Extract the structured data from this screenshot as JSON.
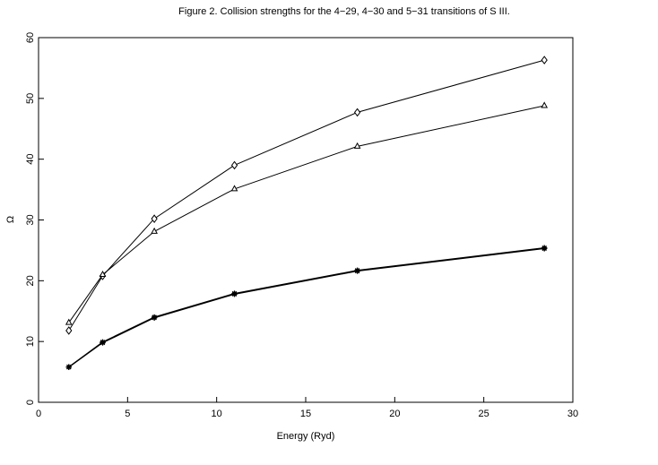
{
  "chart_data": {
    "type": "line",
    "title": "Figure 2. Collision strengths for the 4−29, 4−30 and 5−31 transitions of S III.",
    "xlabel": "Energy (Ryd)",
    "ylabel": "Ω",
    "xlim": [
      0,
      30
    ],
    "ylim": [
      0,
      60
    ],
    "xticks": [
      "0",
      "5",
      "10",
      "15",
      "20",
      "25",
      "30"
    ],
    "yticks": [
      "0",
      "10",
      "20",
      "30",
      "40",
      "50",
      "60"
    ],
    "grid": false,
    "legend": "none",
    "x": [
      1.7,
      3.6,
      6.5,
      11.0,
      17.9,
      28.4
    ],
    "series": [
      {
        "marker": "diamond",
        "values": [
          11.8,
          20.8,
          30.2,
          39.0,
          47.7,
          56.3
        ]
      },
      {
        "marker": "triangle",
        "values": [
          13.1,
          21.0,
          28.1,
          35.1,
          42.1,
          48.8
        ]
      },
      {
        "marker": "asterisk",
        "values": [
          5.8,
          9.9,
          14.0,
          17.9,
          21.7,
          25.4
        ]
      },
      {
        "marker": "asterisk",
        "values": [
          5.8,
          9.8,
          13.9,
          17.8,
          21.6,
          25.3
        ]
      }
    ]
  }
}
